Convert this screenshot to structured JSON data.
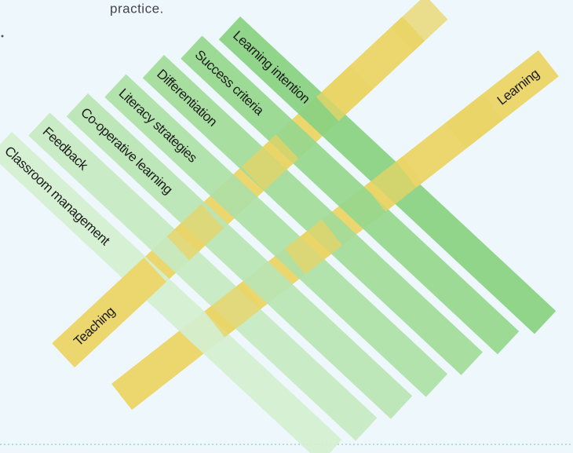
{
  "header": {
    "text": "practice."
  },
  "strips": [
    {
      "label": "Classroom management"
    },
    {
      "label": "Feedback"
    },
    {
      "label": "Co-operative learning"
    },
    {
      "label": "Literacy strategies"
    },
    {
      "label": "Differentiation"
    },
    {
      "label": "Success criteria"
    },
    {
      "label": "Learning intention"
    }
  ],
  "cross_strips": [
    {
      "label": "Teaching"
    },
    {
      "label": "Learning"
    }
  ]
}
